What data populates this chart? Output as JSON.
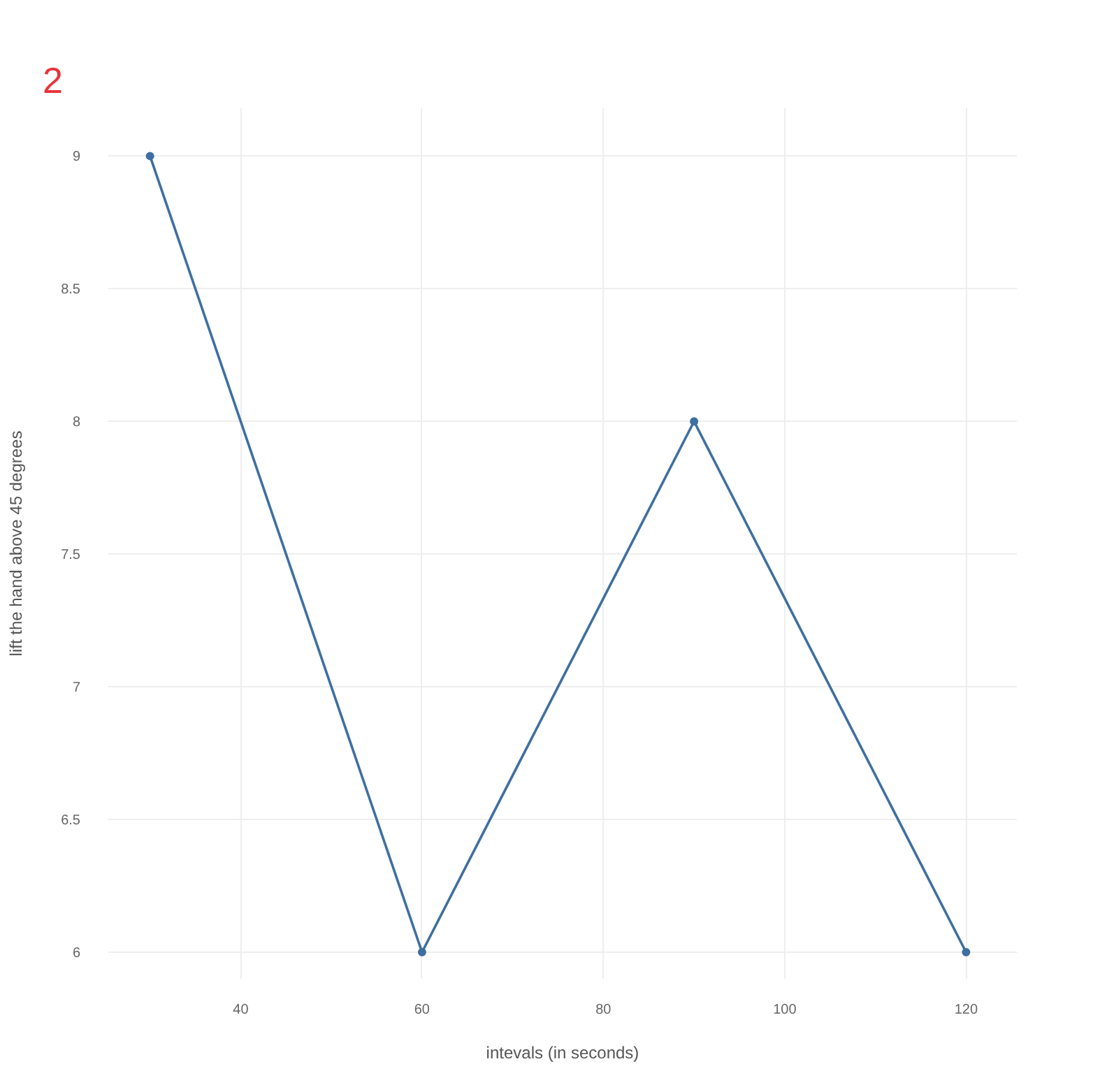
{
  "chart_data": {
    "type": "line",
    "title": "2",
    "xlabel": "intevals (in seconds)",
    "ylabel": "lift the hand above 45 degrees",
    "x": [
      30,
      60,
      90,
      120
    ],
    "series": [
      {
        "color": "#3f6fa0",
        "values": [
          9,
          6,
          8,
          6
        ]
      }
    ],
    "xlim": [
      25.4,
      125.6
    ],
    "ylim": [
      5.9,
      9.18
    ],
    "xticks": [
      40,
      60,
      80,
      100,
      120
    ],
    "yticks": [
      6,
      6.5,
      7,
      7.5,
      8,
      8.5,
      9
    ],
    "grid": true,
    "marker": "circle",
    "line_style": "solid"
  }
}
